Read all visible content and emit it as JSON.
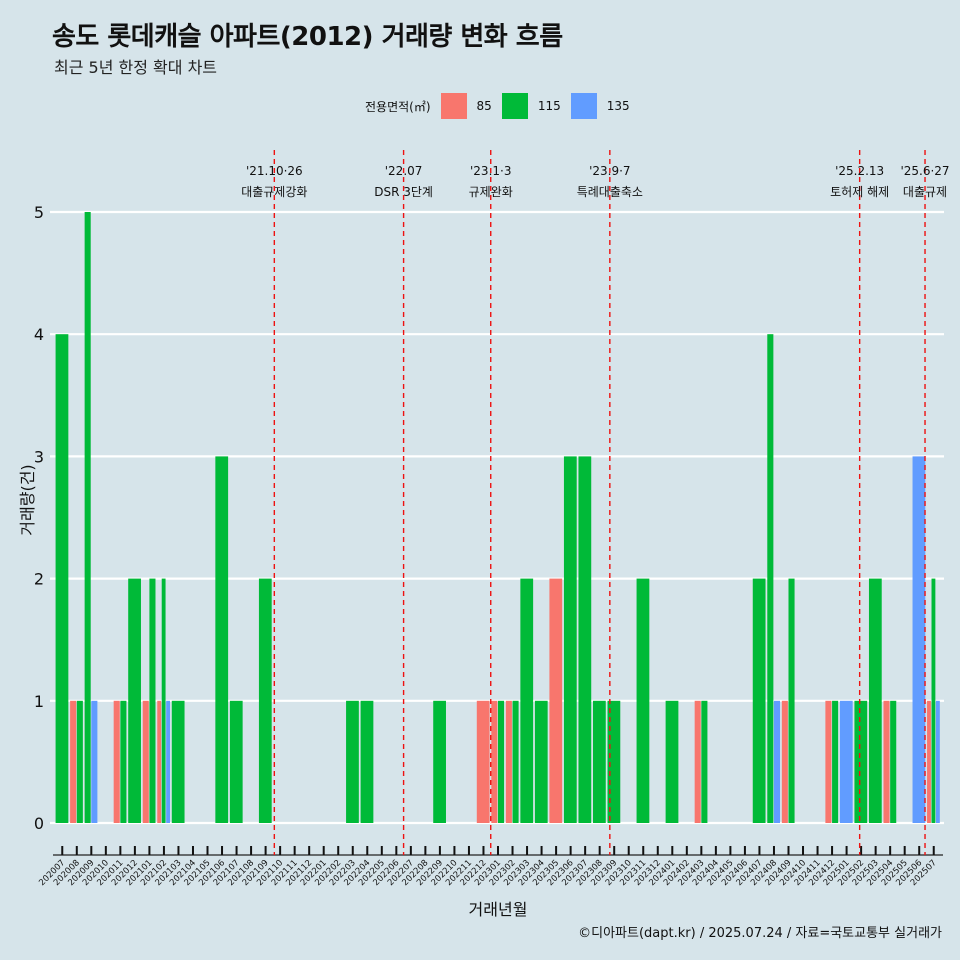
{
  "title": "송도 롯데캐슬 아파트(2012) 거래량 변화 흐름",
  "subtitle": "최근 5년 한정 확대 차트",
  "caption": "©디아파트(dapt.kr) / 2025.07.24 / 자료=국토교통부 실거래가",
  "legend": {
    "title": "전용면적(㎡)",
    "items": [
      {
        "label": "85",
        "color": "#f8766d"
      },
      {
        "label": "115",
        "color": "#00ba38"
      },
      {
        "label": "135",
        "color": "#619cff"
      }
    ]
  },
  "chart_data": {
    "type": "bar",
    "xlabel": "거래년월",
    "ylabel": "거래량(건)",
    "ylim": [
      0,
      5
    ],
    "yticks": [
      0,
      1,
      2,
      3,
      4,
      5
    ],
    "grid": true,
    "legend_position": "top",
    "categories": [
      "202007",
      "202008",
      "202009",
      "202010",
      "202011",
      "202012",
      "202101",
      "202102",
      "202103",
      "202104",
      "202105",
      "202106",
      "202107",
      "202108",
      "202109",
      "202110",
      "202111",
      "202112",
      "202201",
      "202202",
      "202203",
      "202204",
      "202205",
      "202206",
      "202207",
      "202208",
      "202209",
      "202210",
      "202211",
      "202212",
      "202301",
      "202302",
      "202303",
      "202304",
      "202305",
      "202306",
      "202307",
      "202308",
      "202309",
      "202310",
      "202311",
      "202312",
      "202401",
      "202402",
      "202403",
      "202404",
      "202405",
      "202406",
      "202407",
      "202408",
      "202409",
      "202410",
      "202411",
      "202412",
      "202501",
      "202502",
      "202503",
      "202504",
      "202505",
      "202506",
      "202507"
    ],
    "series": [
      {
        "name": "85",
        "color": "#f8766d",
        "values": [
          0,
          1,
          0,
          0,
          1,
          0,
          1,
          1,
          0,
          0,
          0,
          0,
          0,
          0,
          0,
          0,
          0,
          0,
          0,
          0,
          0,
          0,
          0,
          0,
          0,
          0,
          0,
          0,
          0,
          1,
          1,
          1,
          0,
          0,
          2,
          0,
          0,
          0,
          0,
          0,
          0,
          0,
          0,
          0,
          1,
          0,
          0,
          0,
          0,
          0,
          1,
          0,
          0,
          1,
          0,
          0,
          0,
          1,
          0,
          0,
          1
        ]
      },
      {
        "name": "115",
        "color": "#00ba38",
        "values": [
          4,
          1,
          5,
          0,
          1,
          2,
          2,
          2,
          1,
          0,
          0,
          3,
          1,
          0,
          2,
          0,
          0,
          0,
          0,
          0,
          1,
          1,
          0,
          0,
          0,
          0,
          1,
          0,
          0,
          0,
          1,
          1,
          2,
          1,
          0,
          3,
          3,
          1,
          1,
          0,
          2,
          0,
          1,
          0,
          1,
          0,
          0,
          0,
          2,
          4,
          2,
          0,
          0,
          1,
          0,
          1,
          2,
          1,
          0,
          0,
          2
        ]
      },
      {
        "name": "135",
        "color": "#619cff",
        "values": [
          0,
          0,
          1,
          0,
          0,
          0,
          0,
          1,
          0,
          0,
          0,
          0,
          0,
          0,
          0,
          0,
          0,
          0,
          0,
          0,
          0,
          0,
          0,
          0,
          0,
          0,
          0,
          0,
          0,
          0,
          0,
          0,
          0,
          0,
          0,
          0,
          0,
          0,
          0,
          0,
          0,
          0,
          0,
          0,
          0,
          0,
          0,
          0,
          0,
          1,
          0,
          0,
          0,
          0,
          1,
          0,
          0,
          0,
          0,
          3,
          1
        ]
      }
    ],
    "annotations": [
      {
        "date": "'21.10·26",
        "label": "대출규제강화",
        "x_category": "202110",
        "offset": 0.1
      },
      {
        "date": "'22.07",
        "label": "DSR 3단계",
        "x_category": "202207",
        "offset": 0.0
      },
      {
        "date": "'23.1·3",
        "label": "규제완화",
        "x_category": "202301",
        "offset": 0.0
      },
      {
        "date": "'23.9·7",
        "label": "특례대출축소",
        "x_category": "202309",
        "offset": 0.2
      },
      {
        "date": "'25.2.13",
        "label": "토허제 해제",
        "x_category": "202502",
        "offset": 0.4
      },
      {
        "date": "'25.6·27",
        "label": "대출규제",
        "x_category": "202506",
        "offset": 0.9
      }
    ]
  }
}
